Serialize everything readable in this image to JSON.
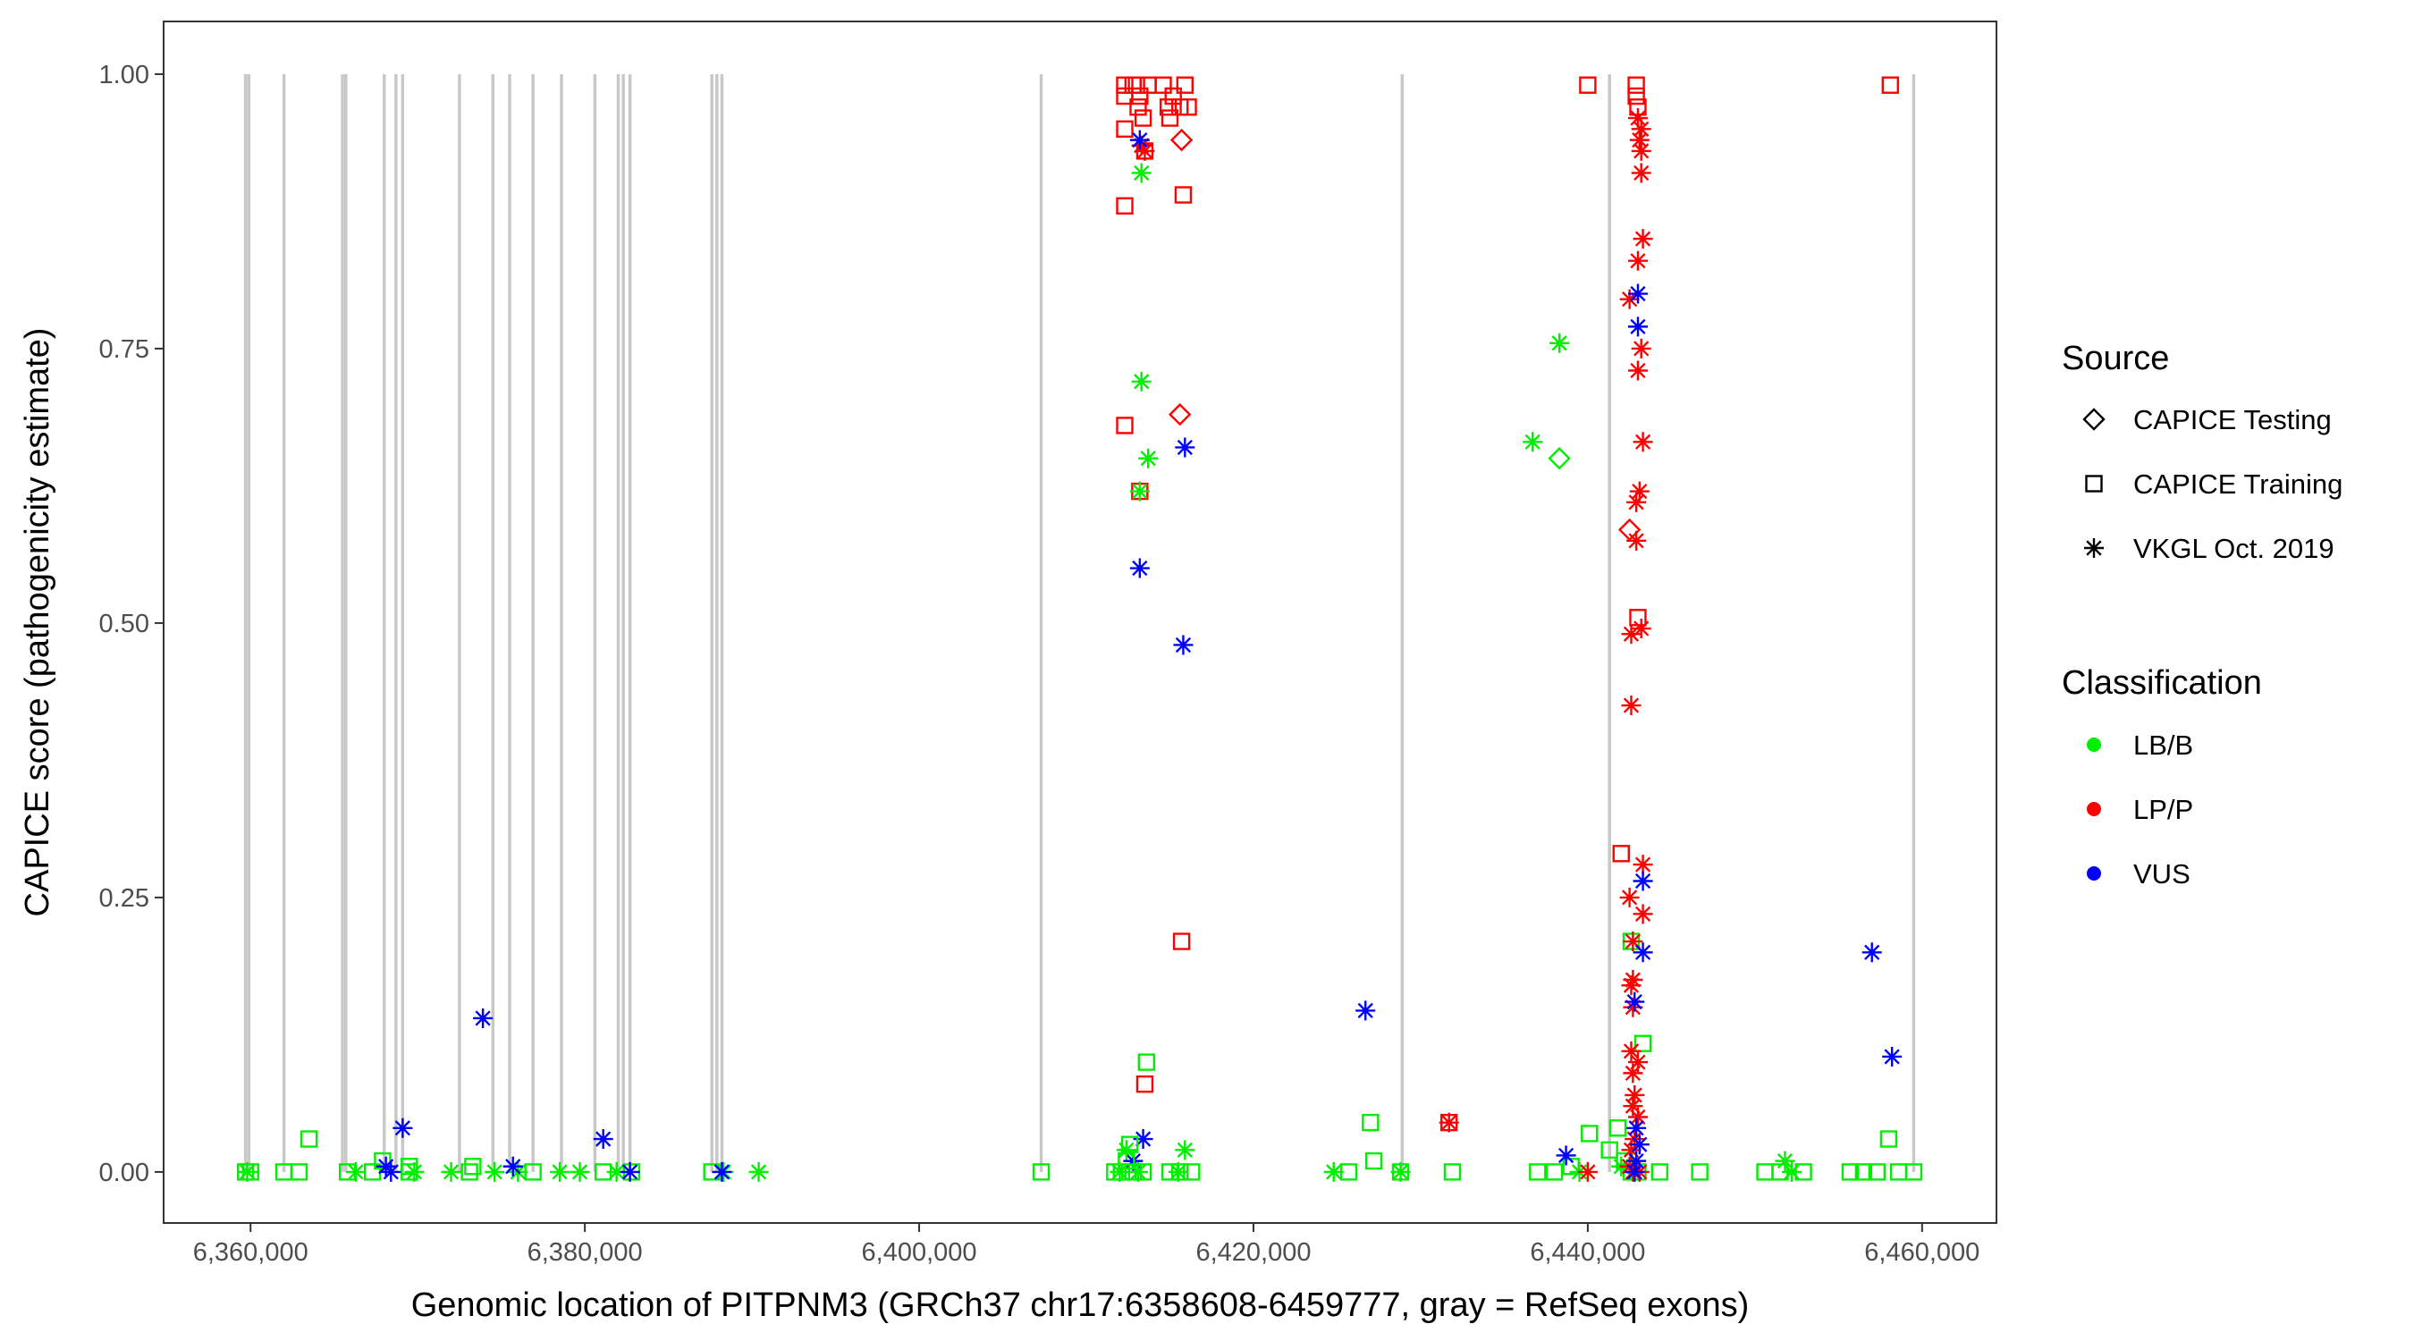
{
  "chart_data": {
    "type": "scatter",
    "title": "",
    "xlabel": "Genomic location of PITPNM3 (GRCh37 chr17:6358608-6459777, gray = RefSeq exons)",
    "ylabel": "CAPICE score (pathogenicity estimate)",
    "xlim": [
      6354800,
      6464450
    ],
    "ylim": [
      -0.0465,
      1.048
    ],
    "grid": false,
    "x_ticks": [
      6360000,
      6380000,
      6400000,
      6420000,
      6440000,
      6460000
    ],
    "x_tick_labels": [
      "6,360,000",
      "6,380,000",
      "6,400,000",
      "6,420,000",
      "6,440,000",
      "6,460,000"
    ],
    "y_ticks": [
      0,
      0.25,
      0.5,
      0.75,
      1.0
    ],
    "y_tick_labels": [
      "0.00",
      "0.25",
      "0.50",
      "0.75",
      "1.00"
    ],
    "exon_color": "#c8c8c8",
    "exons": [
      6359700,
      6359900,
      6362000,
      6365500,
      6365700,
      6368000,
      6368700,
      6369100,
      6372500,
      6374500,
      6375500,
      6376900,
      6378600,
      6380600,
      6382000,
      6382300,
      6382700,
      6387600,
      6387900,
      6388200,
      6407300,
      6428900,
      6441300,
      6459500
    ],
    "legend": {
      "placement": "right",
      "source_title": "Source",
      "sources": [
        {
          "code": "Te",
          "label": "CAPICE Testing",
          "shape": "diamond"
        },
        {
          "code": "Tr",
          "label": "CAPICE Training",
          "shape": "square"
        },
        {
          "code": "V",
          "label": "VKGL Oct. 2019",
          "shape": "asterisk"
        }
      ],
      "class_title": "Classification",
      "classes": [
        {
          "code": "LB/B",
          "label": "LB/B",
          "color": "#00ee00"
        },
        {
          "code": "LP/P",
          "label": "LP/P",
          "color": "#ff0000"
        },
        {
          "code": "VUS",
          "label": "VUS",
          "color": "#0000ff"
        }
      ]
    },
    "point_fields": [
      "x",
      "y",
      "source",
      "classification"
    ],
    "points": [
      [
        6359700,
        0,
        "Tr",
        "LB/B"
      ],
      [
        6360000,
        0,
        "Tr",
        "LB/B"
      ],
      [
        6362000,
        0,
        "Tr",
        "LB/B"
      ],
      [
        6362900,
        0,
        "Tr",
        "LB/B"
      ],
      [
        6365800,
        0,
        "Tr",
        "LB/B"
      ],
      [
        6367300,
        0,
        "Tr",
        "LB/B"
      ],
      [
        6369500,
        0,
        "Tr",
        "LB/B"
      ],
      [
        6373100,
        0,
        "Tr",
        "LB/B"
      ],
      [
        6376900,
        0,
        "Tr",
        "LB/B"
      ],
      [
        6381100,
        0,
        "Tr",
        "LB/B"
      ],
      [
        6382800,
        0,
        "Tr",
        "LB/B"
      ],
      [
        6387600,
        0,
        "Tr",
        "LB/B"
      ],
      [
        6363500,
        0.03,
        "Tr",
        "LB/B"
      ],
      [
        6367900,
        0.01,
        "Tr",
        "LB/B"
      ],
      [
        6369500,
        0.005,
        "Tr",
        "LB/B"
      ],
      [
        6373300,
        0.005,
        "Tr",
        "LB/B"
      ],
      [
        6359800,
        0,
        "V",
        "LB/B"
      ],
      [
        6366300,
        0,
        "V",
        "LB/B"
      ],
      [
        6369800,
        0,
        "V",
        "LB/B"
      ],
      [
        6372000,
        0,
        "V",
        "LB/B"
      ],
      [
        6374600,
        0,
        "V",
        "LB/B"
      ],
      [
        6376000,
        0,
        "V",
        "LB/B"
      ],
      [
        6378500,
        0,
        "V",
        "LB/B"
      ],
      [
        6379700,
        0,
        "V",
        "LB/B"
      ],
      [
        6381900,
        0,
        "V",
        "LB/B"
      ],
      [
        6388300,
        0,
        "V",
        "LB/B"
      ],
      [
        6390400,
        0,
        "V",
        "LB/B"
      ],
      [
        6368100,
        0.005,
        "V",
        "VUS"
      ],
      [
        6368400,
        0,
        "V",
        "VUS"
      ],
      [
        6369100,
        0.04,
        "V",
        "VUS"
      ],
      [
        6373900,
        0.14,
        "V",
        "VUS"
      ],
      [
        6375700,
        0.005,
        "V",
        "VUS"
      ],
      [
        6381100,
        0.03,
        "V",
        "VUS"
      ],
      [
        6382700,
        0,
        "V",
        "VUS"
      ],
      [
        6388200,
        0,
        "V",
        "VUS"
      ],
      [
        6412300,
        0.99,
        "Tr",
        "LP/P"
      ],
      [
        6412300,
        0.98,
        "Tr",
        "LP/P"
      ],
      [
        6412300,
        0.95,
        "Tr",
        "LP/P"
      ],
      [
        6412800,
        0.99,
        "Tr",
        "LP/P"
      ],
      [
        6413100,
        0.97,
        "Tr",
        "LP/P"
      ],
      [
        6413400,
        0.96,
        "Tr",
        "LP/P"
      ],
      [
        6413500,
        0.93,
        "Tr",
        "LP/P"
      ],
      [
        6413700,
        0.99,
        "Tr",
        "LP/P"
      ],
      [
        6414600,
        0.99,
        "Tr",
        "LP/P"
      ],
      [
        6414900,
        0.97,
        "Tr",
        "LP/P"
      ],
      [
        6415200,
        0.98,
        "Tr",
        "LP/P"
      ],
      [
        6415600,
        0.97,
        "Tr",
        "LP/P"
      ],
      [
        6415900,
        0.99,
        "Tr",
        "LP/P"
      ],
      [
        6416100,
        0.97,
        "Tr",
        "LP/P"
      ],
      [
        6415800,
        0.89,
        "Tr",
        "LP/P"
      ],
      [
        6412300,
        0.88,
        "Tr",
        "LP/P"
      ],
      [
        6412300,
        0.68,
        "Tr",
        "LP/P"
      ],
      [
        6413200,
        0.62,
        "Tr",
        "LP/P"
      ],
      [
        6413500,
        0.08,
        "Tr",
        "LP/P"
      ],
      [
        6415700,
        0.21,
        "Tr",
        "LP/P"
      ],
      [
        6413000,
        0.99,
        "Tr",
        "LP/P"
      ],
      [
        6413200,
        0.98,
        "Tr",
        "LP/P"
      ],
      [
        6415000,
        0.96,
        "Tr",
        "LP/P"
      ],
      [
        6415700,
        0.94,
        "Te",
        "LP/P"
      ],
      [
        6415600,
        0.69,
        "Te",
        "LP/P"
      ],
      [
        6413500,
        0.93,
        "V",
        "LP/P"
      ],
      [
        6413300,
        0.935,
        "V",
        "LP/P"
      ],
      [
        6413200,
        0.94,
        "V",
        "VUS"
      ],
      [
        6413200,
        0.55,
        "V",
        "VUS"
      ],
      [
        6415900,
        0.66,
        "V",
        "VUS"
      ],
      [
        6415800,
        0.48,
        "V",
        "VUS"
      ],
      [
        6413400,
        0.03,
        "V",
        "VUS"
      ],
      [
        6412800,
        0.01,
        "V",
        "VUS"
      ],
      [
        6413300,
        0.91,
        "V",
        "LB/B"
      ],
      [
        6413300,
        0.72,
        "V",
        "LB/B"
      ],
      [
        6413700,
        0.65,
        "V",
        "LB/B"
      ],
      [
        6413200,
        0.62,
        "V",
        "LB/B"
      ],
      [
        6412400,
        0.02,
        "V",
        "LB/B"
      ],
      [
        6415900,
        0.02,
        "V",
        "LB/B"
      ],
      [
        6413100,
        0,
        "V",
        "LB/B"
      ],
      [
        6412000,
        0,
        "V",
        "LB/B"
      ],
      [
        6415500,
        0,
        "V",
        "LB/B"
      ],
      [
        6413600,
        0.1,
        "Tr",
        "LB/B"
      ],
      [
        6411700,
        0,
        "Tr",
        "LB/B"
      ],
      [
        6412100,
        0,
        "Tr",
        "LB/B"
      ],
      [
        6412400,
        0.01,
        "Tr",
        "LB/B"
      ],
      [
        6412800,
        0,
        "Tr",
        "LB/B"
      ],
      [
        6413400,
        0,
        "Tr",
        "LB/B"
      ],
      [
        6415000,
        0,
        "Tr",
        "LB/B"
      ],
      [
        6415600,
        0,
        "Tr",
        "LB/B"
      ],
      [
        6416300,
        0,
        "Tr",
        "LB/B"
      ],
      [
        6412600,
        0.025,
        "Tr",
        "LB/B"
      ],
      [
        6407300,
        0,
        "Tr",
        "LB/B"
      ],
      [
        6425700,
        0,
        "Tr",
        "LB/B"
      ],
      [
        6427000,
        0.045,
        "Tr",
        "LB/B"
      ],
      [
        6427200,
        0.01,
        "Tr",
        "LB/B"
      ],
      [
        6428800,
        0,
        "Tr",
        "LB/B"
      ],
      [
        6431900,
        0,
        "Tr",
        "LB/B"
      ],
      [
        6437000,
        0,
        "Tr",
        "LB/B"
      ],
      [
        6438000,
        0,
        "Tr",
        "LB/B"
      ],
      [
        6440100,
        0.035,
        "Tr",
        "LB/B"
      ],
      [
        6441300,
        0.02,
        "Tr",
        "LB/B"
      ],
      [
        6441800,
        0.04,
        "Tr",
        "LB/B"
      ],
      [
        6442200,
        0.01,
        "Tr",
        "LB/B"
      ],
      [
        6442600,
        0,
        "Tr",
        "LB/B"
      ],
      [
        6443000,
        0,
        "Tr",
        "LB/B"
      ],
      [
        6444300,
        0,
        "Tr",
        "LB/B"
      ],
      [
        6446700,
        0,
        "Tr",
        "LB/B"
      ],
      [
        6442600,
        0.21,
        "Tr",
        "LB/B"
      ],
      [
        6443300,
        0.117,
        "Tr",
        "LB/B"
      ],
      [
        6450600,
        0,
        "Tr",
        "LB/B"
      ],
      [
        6451500,
        0,
        "Tr",
        "LB/B"
      ],
      [
        6452900,
        0,
        "Tr",
        "LB/B"
      ],
      [
        6455700,
        0,
        "Tr",
        "LB/B"
      ],
      [
        6456500,
        0,
        "Tr",
        "LB/B"
      ],
      [
        6457300,
        0,
        "Tr",
        "LB/B"
      ],
      [
        6458000,
        0.03,
        "Tr",
        "LB/B"
      ],
      [
        6458600,
        0,
        "Tr",
        "LB/B"
      ],
      [
        6459500,
        0,
        "Tr",
        "LB/B"
      ],
      [
        6439000,
        0.005,
        "Tr",
        "LB/B"
      ],
      [
        6424800,
        0,
        "V",
        "LB/B"
      ],
      [
        6428800,
        0,
        "V",
        "LB/B"
      ],
      [
        6436700,
        0.665,
        "V",
        "LB/B"
      ],
      [
        6438300,
        0.755,
        "V",
        "LB/B"
      ],
      [
        6451800,
        0.01,
        "V",
        "LB/B"
      ],
      [
        6452200,
        0,
        "V",
        "LB/B"
      ],
      [
        6439500,
        0,
        "V",
        "LB/B"
      ],
      [
        6442000,
        0.005,
        "V",
        "LB/B"
      ],
      [
        6438300,
        0.65,
        "Te",
        "LB/B"
      ],
      [
        6431700,
        0.045,
        "Tr",
        "LP/P"
      ],
      [
        6440000,
        0.99,
        "Tr",
        "LP/P"
      ],
      [
        6442000,
        0.29,
        "Tr",
        "LP/P"
      ],
      [
        6442900,
        0.99,
        "Tr",
        "LP/P"
      ],
      [
        6442900,
        0.98,
        "Tr",
        "LP/P"
      ],
      [
        6443000,
        0.97,
        "Tr",
        "LP/P"
      ],
      [
        6443000,
        0.505,
        "Tr",
        "LP/P"
      ],
      [
        6458100,
        0.99,
        "Tr",
        "LP/P"
      ],
      [
        6431700,
        0.045,
        "V",
        "LP/P"
      ],
      [
        6440000,
        0,
        "V",
        "LP/P"
      ],
      [
        6443000,
        0.96,
        "V",
        "LP/P"
      ],
      [
        6443200,
        0.95,
        "V",
        "LP/P"
      ],
      [
        6443100,
        0.94,
        "V",
        "LP/P"
      ],
      [
        6443200,
        0.93,
        "V",
        "LP/P"
      ],
      [
        6443200,
        0.91,
        "V",
        "LP/P"
      ],
      [
        6443300,
        0.85,
        "V",
        "LP/P"
      ],
      [
        6443000,
        0.83,
        "V",
        "LP/P"
      ],
      [
        6442500,
        0.795,
        "V",
        "LP/P"
      ],
      [
        6443200,
        0.75,
        "V",
        "LP/P"
      ],
      [
        6443000,
        0.73,
        "V",
        "LP/P"
      ],
      [
        6443300,
        0.665,
        "V",
        "LP/P"
      ],
      [
        6443100,
        0.62,
        "V",
        "LP/P"
      ],
      [
        6442900,
        0.61,
        "V",
        "LP/P"
      ],
      [
        6442900,
        0.575,
        "V",
        "LP/P"
      ],
      [
        6443200,
        0.495,
        "V",
        "LP/P"
      ],
      [
        6442600,
        0.49,
        "V",
        "LP/P"
      ],
      [
        6442600,
        0.425,
        "V",
        "LP/P"
      ],
      [
        6443300,
        0.28,
        "V",
        "LP/P"
      ],
      [
        6442500,
        0.25,
        "V",
        "LP/P"
      ],
      [
        6443300,
        0.235,
        "V",
        "LP/P"
      ],
      [
        6442700,
        0.21,
        "V",
        "LP/P"
      ],
      [
        6442700,
        0.175,
        "V",
        "LP/P"
      ],
      [
        6442600,
        0.17,
        "V",
        "LP/P"
      ],
      [
        6442700,
        0.15,
        "V",
        "LP/P"
      ],
      [
        6442600,
        0.11,
        "V",
        "LP/P"
      ],
      [
        6443000,
        0.1,
        "V",
        "LP/P"
      ],
      [
        6442700,
        0.09,
        "V",
        "LP/P"
      ],
      [
        6442800,
        0.07,
        "V",
        "LP/P"
      ],
      [
        6442700,
        0.06,
        "V",
        "LP/P"
      ],
      [
        6443000,
        0.05,
        "V",
        "LP/P"
      ],
      [
        6442800,
        0.03,
        "V",
        "LP/P"
      ],
      [
        6442600,
        0.02,
        "V",
        "LP/P"
      ],
      [
        6443100,
        0,
        "V",
        "LP/P"
      ],
      [
        6442700,
        0,
        "V",
        "LP/P"
      ],
      [
        6442500,
        0.005,
        "V",
        "LP/P"
      ],
      [
        6442500,
        0.585,
        "Te",
        "LP/P"
      ],
      [
        6426700,
        0.147,
        "V",
        "VUS"
      ],
      [
        6438700,
        0.015,
        "V",
        "VUS"
      ],
      [
        6443000,
        0.8,
        "V",
        "VUS"
      ],
      [
        6443000,
        0.77,
        "V",
        "VUS"
      ],
      [
        6443300,
        0.265,
        "V",
        "VUS"
      ],
      [
        6443300,
        0.2,
        "V",
        "VUS"
      ],
      [
        6442800,
        0.155,
        "V",
        "VUS"
      ],
      [
        6442900,
        0.04,
        "V",
        "VUS"
      ],
      [
        6443100,
        0.025,
        "V",
        "VUS"
      ],
      [
        6442900,
        0.01,
        "V",
        "VUS"
      ],
      [
        6442800,
        0,
        "V",
        "VUS"
      ],
      [
        6457000,
        0.2,
        "V",
        "VUS"
      ],
      [
        6458200,
        0.105,
        "V",
        "VUS"
      ]
    ]
  }
}
